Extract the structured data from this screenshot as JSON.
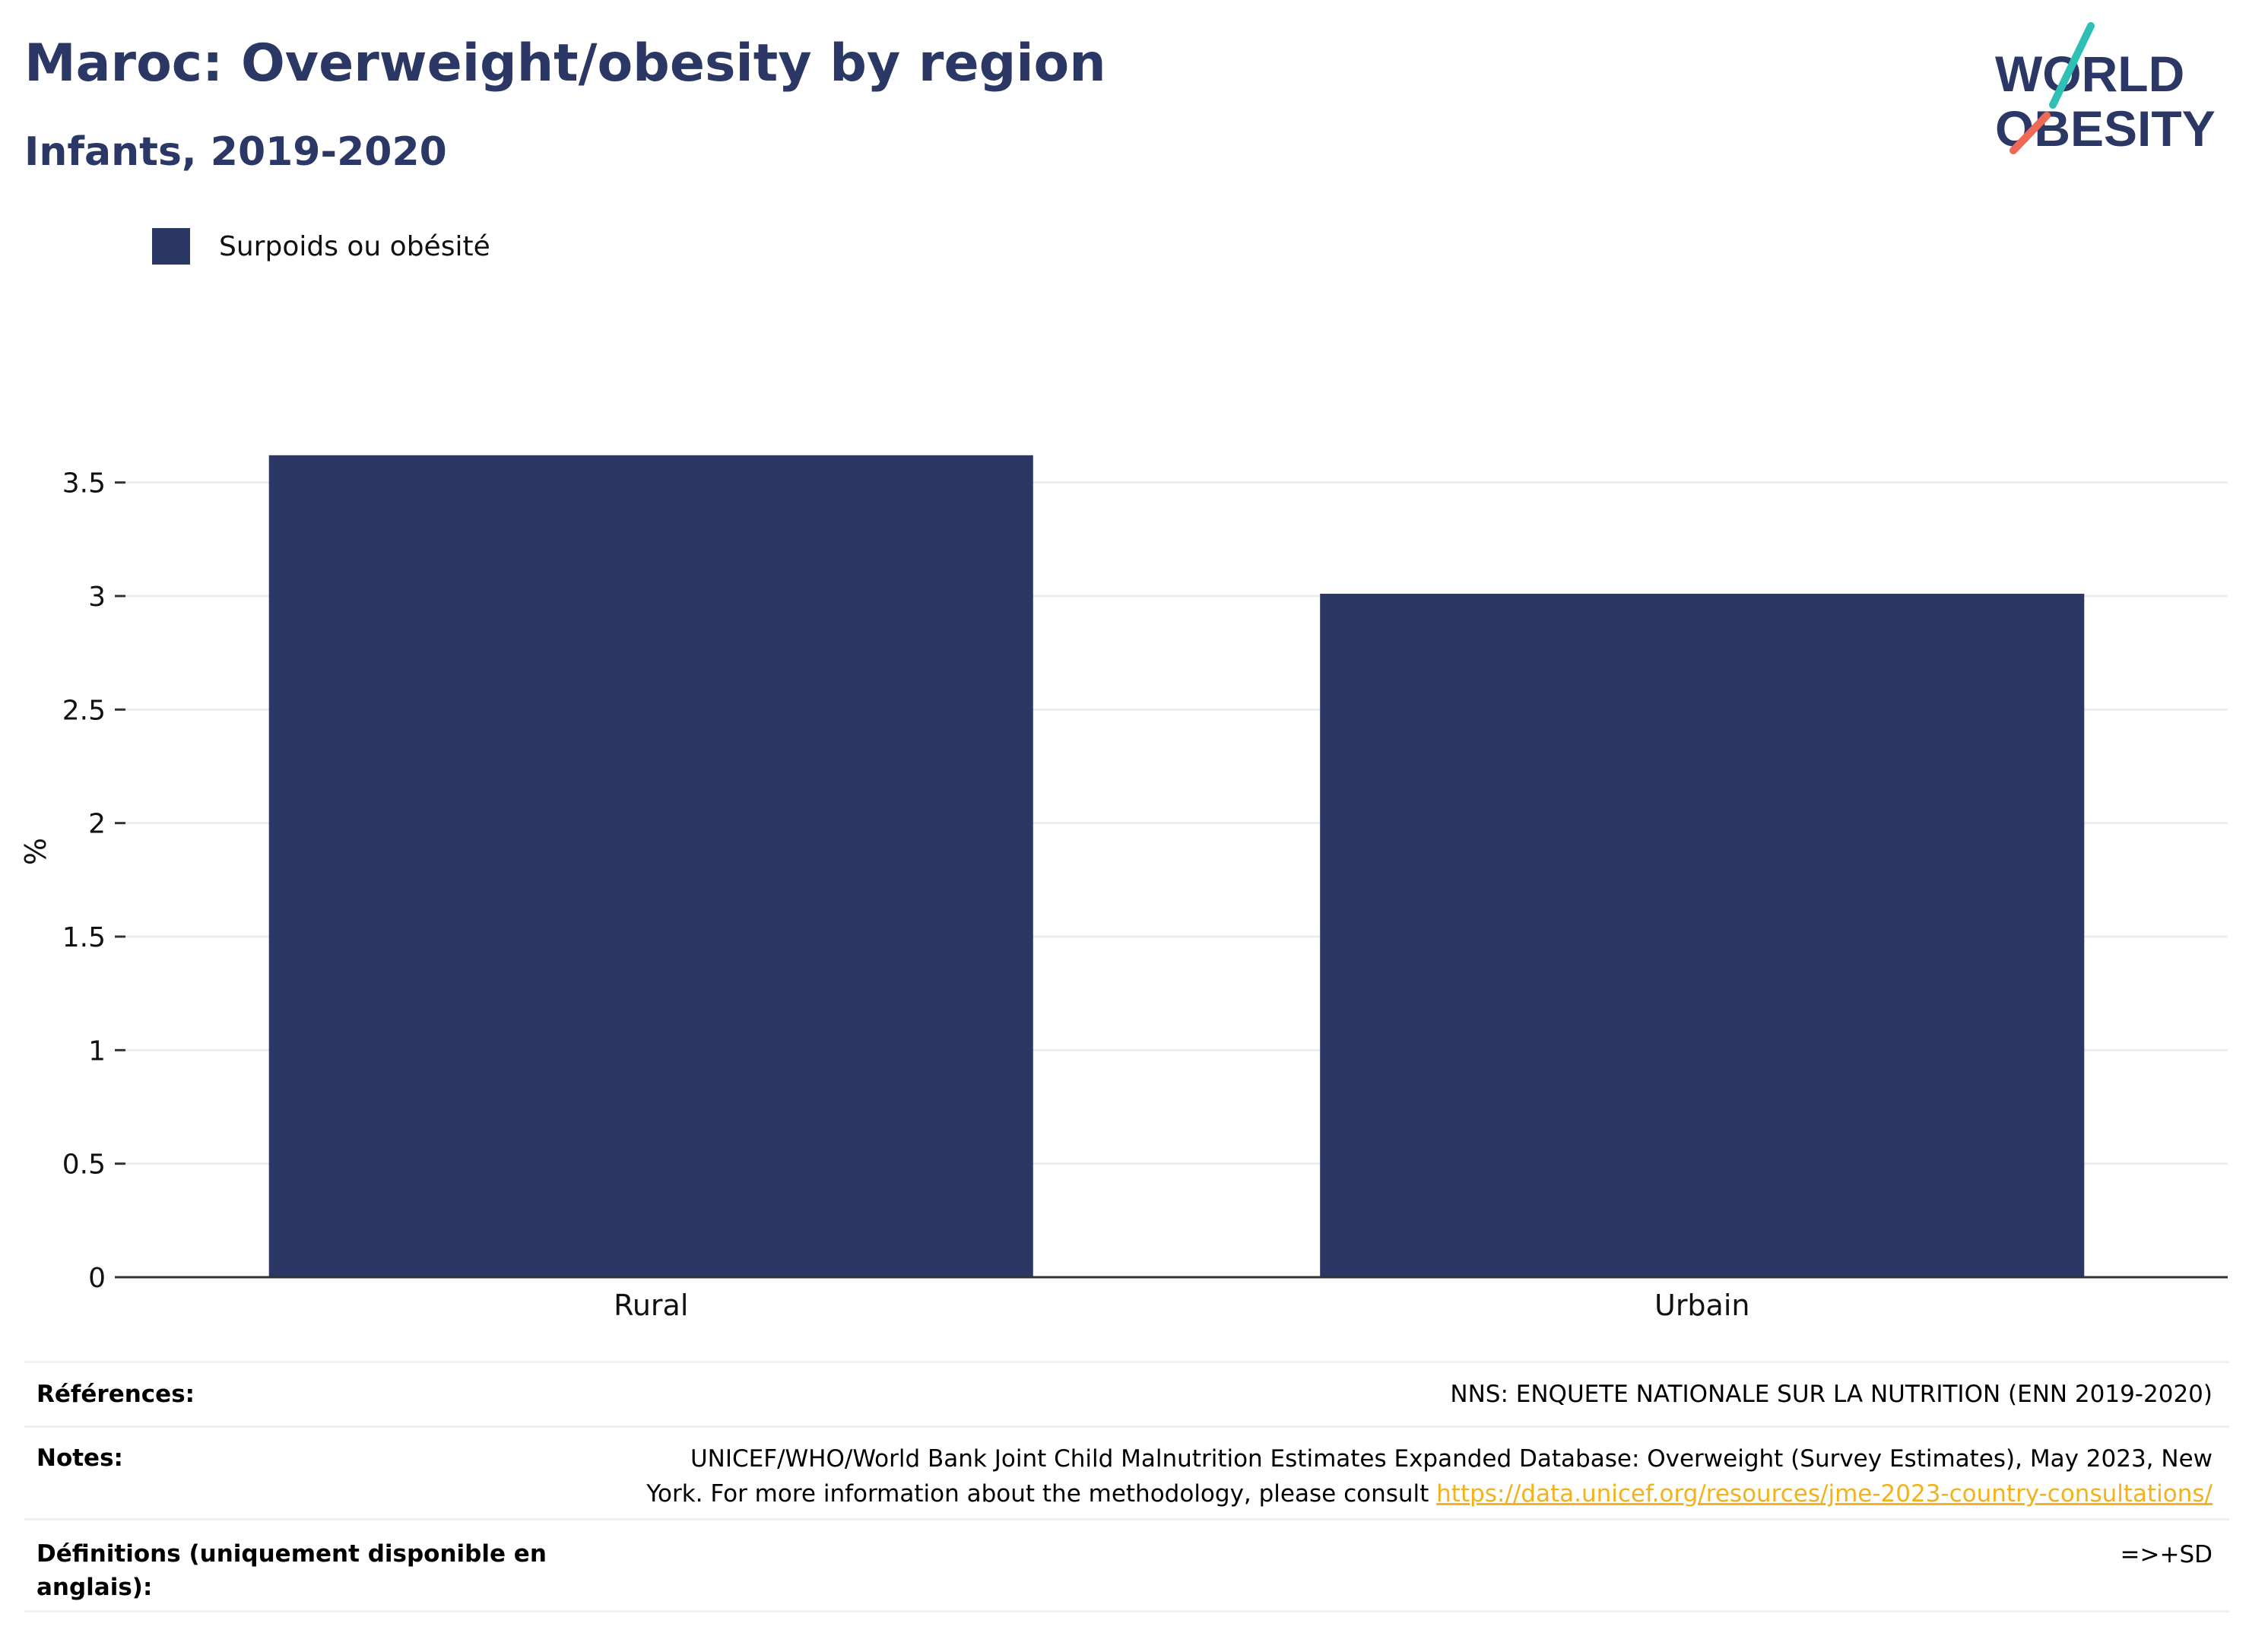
{
  "header": {
    "title": "Maroc: Overweight/obesity by region",
    "subtitle": "Infants, 2019-2020"
  },
  "logo": {
    "line1": "WORLD",
    "line2": "OBESITY",
    "colors": {
      "navy": "#2b3765",
      "teal": "#2fc0b5",
      "coral": "#ee6a57"
    }
  },
  "chart_data": {
    "type": "bar",
    "categories": [
      "Rural",
      "Urbain"
    ],
    "series": [
      {
        "name": "Surpoids ou obésité",
        "values": [
          3.62,
          3.01
        ],
        "color": "#2b3765"
      }
    ],
    "ylabel": "%",
    "yticks": [
      "0",
      "0.5",
      "1",
      "1.5",
      "2",
      "2.5",
      "3",
      "3.5"
    ],
    "ylim": [
      0,
      3.75
    ],
    "grid": true,
    "legend_position": "top-left"
  },
  "notes": {
    "references_label": "Références:",
    "references_value": "NNS: ENQUETE NATIONALE SUR LA NUTRITION (ENN 2019-2020)",
    "notes_label": "Notes:",
    "notes_line1": "UNICEF/WHO/World Bank Joint Child Malnutrition Estimates Expanded Database: Overweight (Survey Estimates), May 2023, New",
    "notes_line2": "York. For more information about the methodology, please consult ",
    "notes_link": "https://data.unicef.org/resources/jme-2023-country-consultations/",
    "definitions_label": "Définitions (uniquement disponible en anglais):",
    "definitions_value": "=>+SD"
  }
}
